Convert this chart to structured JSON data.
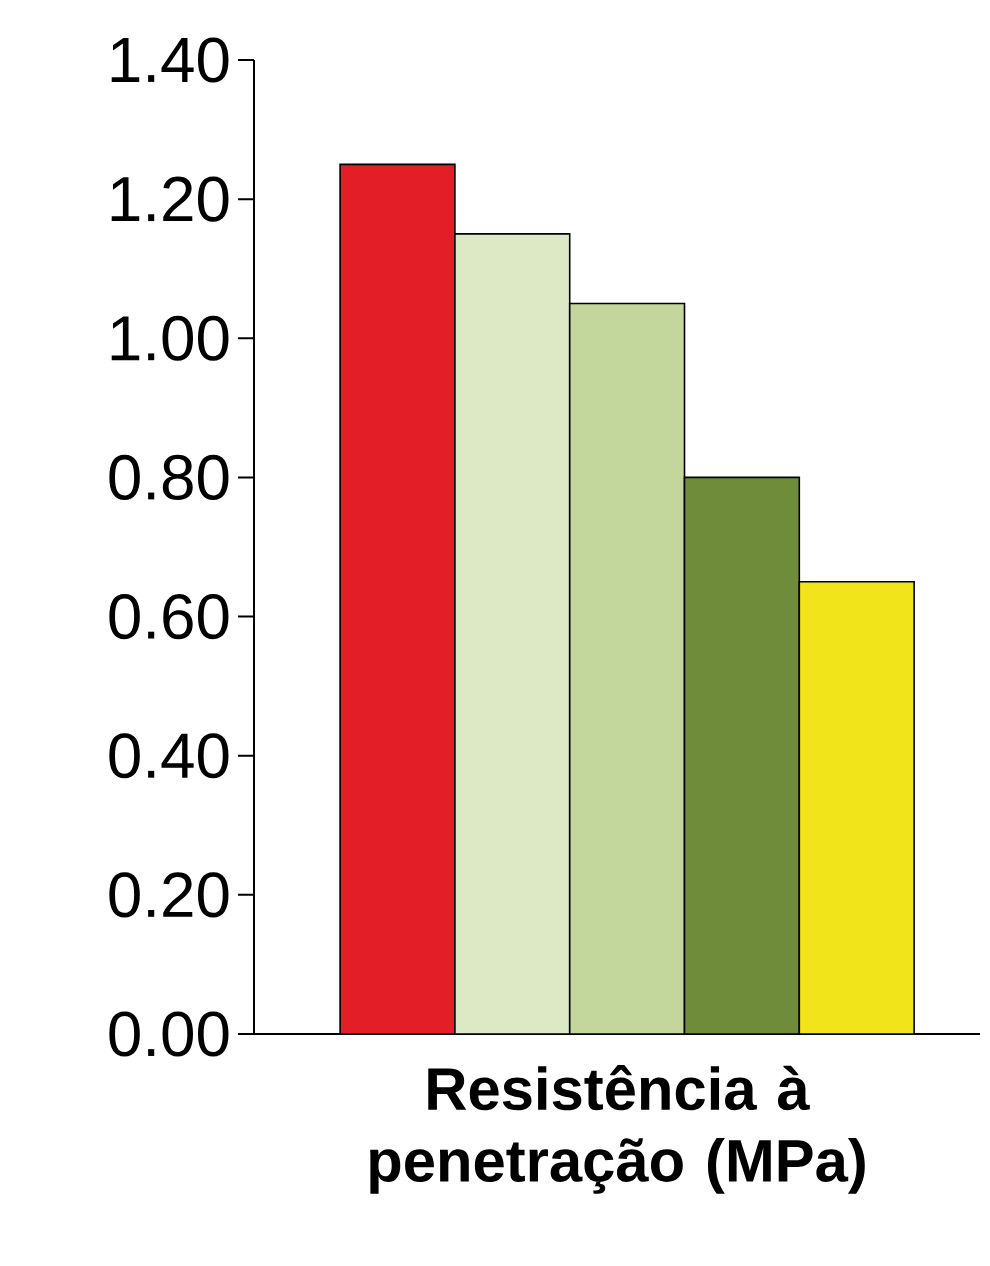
{
  "chart_data": {
    "type": "bar",
    "xlabel": "Resistência à penetração (MPa)",
    "categories": [
      null,
      null,
      null,
      null,
      null
    ],
    "values": [
      1.25,
      1.15,
      1.05,
      0.8,
      0.65
    ],
    "colors": [
      "#e41e26",
      "#dde8c4",
      "#c3d69b",
      "#6f8c3a",
      "#f1e41a"
    ],
    "ylim": [
      0,
      1.4
    ],
    "yticks": [
      {
        "value": 0,
        "label": "0.00"
      },
      {
        "value": 0.2,
        "label": "0.20"
      },
      {
        "value": 0.4,
        "label": "0.40"
      },
      {
        "value": 0.6,
        "label": "0.60"
      },
      {
        "value": 0.8,
        "label": "0.80"
      },
      {
        "value": 1.0,
        "label": "1.00"
      },
      {
        "value": 1.2,
        "label": "1.20"
      },
      {
        "value": 1.4,
        "label": "1.40"
      }
    ],
    "grid": false
  }
}
